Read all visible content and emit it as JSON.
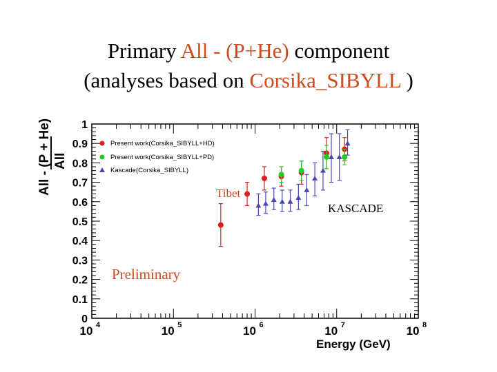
{
  "title": {
    "line1_prefix": "Primary ",
    "line1_accent": "All - (P+He)",
    "line1_suffix": " component",
    "line2_prefix": "(analyses based on ",
    "line2_accent": "Corsika_SIBYLL",
    "line2_suffix": " )"
  },
  "colors": {
    "accent": "#cc4a1c",
    "present_hd": "#e31a1c",
    "present_pd": "#22cc22",
    "kascade": "#4848b0"
  },
  "chart_data": {
    "type": "scatter",
    "xlabel": "Energy (GeV)",
    "ylabel_top": "All - (P + He)",
    "ylabel_bottom": "All",
    "xscale": "log",
    "xlim": [
      10000,
      100000000
    ],
    "ylim": [
      0,
      1
    ],
    "x_tick_labels": [
      {
        "base": "10",
        "exp": "4",
        "value": 10000
      },
      {
        "base": "10",
        "exp": "5",
        "value": 100000
      },
      {
        "base": "10",
        "exp": "6",
        "value": 1000000
      },
      {
        "base": "10",
        "exp": "7",
        "value": 10000000
      },
      {
        "base": "10",
        "exp": "8",
        "value": 100000000
      }
    ],
    "y_tick_labels": [
      "0",
      "0.1",
      "0.2",
      "0.3",
      "0.4",
      "0.5",
      "0.6",
      "0.7",
      "0.8",
      "0.9",
      "1"
    ],
    "legend_position": "top-left",
    "series": [
      {
        "name": "Present work(Corsika_SIBYLL+HD)",
        "marker": "circle",
        "color": "#e31a1c",
        "points": [
          {
            "x": 380000,
            "y": 0.48,
            "ylo": 0.37,
            "yhi": 0.59
          },
          {
            "x": 800000,
            "y": 0.64,
            "ylo": 0.58,
            "yhi": 0.7
          },
          {
            "x": 1300000,
            "y": 0.72,
            "ylo": 0.66,
            "yhi": 0.78
          },
          {
            "x": 2100000,
            "y": 0.73,
            "ylo": 0.68,
            "yhi": 0.78
          },
          {
            "x": 3700000,
            "y": 0.75,
            "ylo": 0.69,
            "yhi": 0.81
          },
          {
            "x": 7500000,
            "y": 0.85,
            "ylo": 0.77,
            "yhi": 0.93
          },
          {
            "x": 12500000,
            "y": 0.87,
            "ylo": 0.81,
            "yhi": 0.93
          }
        ]
      },
      {
        "name": "Present work(Corsika_SIBYLL+PD)",
        "marker": "circle",
        "color": "#22cc22",
        "points": [
          {
            "x": 2100000,
            "y": 0.74,
            "ylo": 0.7,
            "yhi": 0.78
          },
          {
            "x": 3700000,
            "y": 0.76,
            "ylo": 0.71,
            "yhi": 0.81
          },
          {
            "x": 7500000,
            "y": 0.83,
            "ylo": 0.77,
            "yhi": 0.89
          },
          {
            "x": 12500000,
            "y": 0.83,
            "ylo": 0.79,
            "yhi": 0.87
          }
        ]
      },
      {
        "name": "Kascade(Corsika_SIBYLL)",
        "marker": "triangle",
        "color": "#4848b0",
        "points": [
          {
            "x": 1100000,
            "y": 0.58,
            "ylo": 0.53,
            "yhi": 0.64
          },
          {
            "x": 1350000,
            "y": 0.59,
            "ylo": 0.54,
            "yhi": 0.65
          },
          {
            "x": 1700000,
            "y": 0.61,
            "ylo": 0.56,
            "yhi": 0.67
          },
          {
            "x": 2150000,
            "y": 0.6,
            "ylo": 0.55,
            "yhi": 0.66
          },
          {
            "x": 2700000,
            "y": 0.6,
            "ylo": 0.55,
            "yhi": 0.66
          },
          {
            "x": 3400000,
            "y": 0.62,
            "ylo": 0.56,
            "yhi": 0.69
          },
          {
            "x": 4300000,
            "y": 0.66,
            "ylo": 0.58,
            "yhi": 0.74
          },
          {
            "x": 5400000,
            "y": 0.72,
            "ylo": 0.63,
            "yhi": 0.8
          },
          {
            "x": 6800000,
            "y": 0.76,
            "ylo": 0.66,
            "yhi": 0.86
          },
          {
            "x": 8600000,
            "y": 0.83,
            "ylo": 0.7,
            "yhi": 0.95
          },
          {
            "x": 10800000,
            "y": 0.83,
            "ylo": 0.71,
            "yhi": 0.95
          },
          {
            "x": 13600000,
            "y": 0.9,
            "ylo": 0.84,
            "yhi": 0.97
          }
        ]
      }
    ],
    "annotations": [
      {
        "text": "Tibet",
        "color": "#cc4a1c"
      },
      {
        "text": "KASCADE",
        "color": "#000000"
      },
      {
        "text": "Preliminary",
        "color": "#cc4a1c"
      }
    ]
  }
}
